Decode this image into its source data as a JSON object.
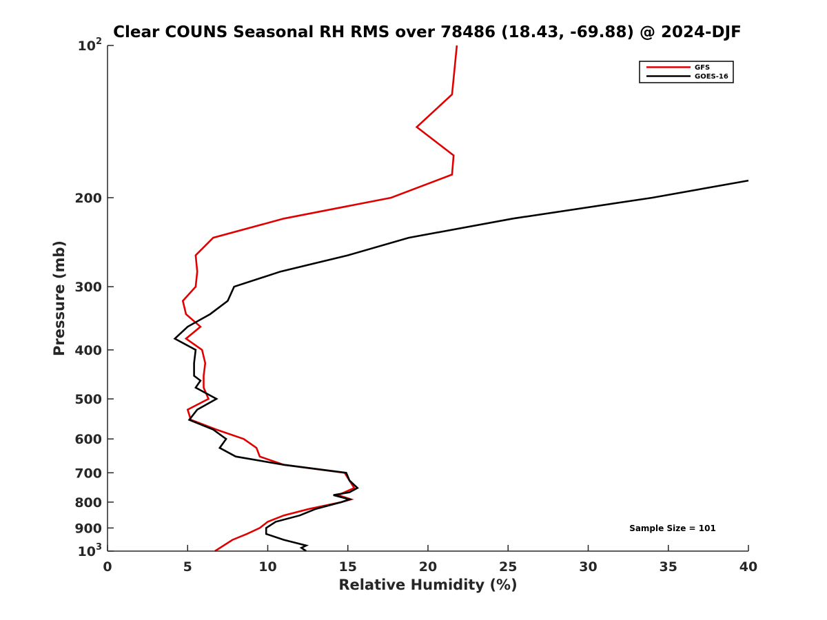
{
  "chart_data": {
    "type": "line",
    "title": "Clear COUNS Seasonal RH RMS over 78486 (18.43, -69.88) @ 2024-DJF",
    "xlabel": "Relative Humidity (%)",
    "ylabel": "Pressure (mb)",
    "xlim": [
      0,
      40
    ],
    "ylim": [
      100,
      1000
    ],
    "yscale": "log",
    "y_reversed": true,
    "x_ticks": [
      0,
      5,
      10,
      15,
      20,
      25,
      30,
      35,
      40
    ],
    "x_tick_labels": [
      "0",
      "5",
      "10",
      "15",
      "20",
      "25",
      "30",
      "35",
      "40"
    ],
    "y_ticks": [
      100,
      200,
      300,
      400,
      500,
      600,
      700,
      800,
      900,
      1000
    ],
    "y_tick_labels": [
      {
        "base": "10",
        "sup": "2"
      },
      {
        "base": "200",
        "sup": ""
      },
      {
        "base": "300",
        "sup": ""
      },
      {
        "base": "400",
        "sup": ""
      },
      {
        "base": "500",
        "sup": ""
      },
      {
        "base": "600",
        "sup": ""
      },
      {
        "base": "700",
        "sup": ""
      },
      {
        "base": "800",
        "sup": ""
      },
      {
        "base": "900",
        "sup": ""
      },
      {
        "base": "10",
        "sup": "3"
      }
    ],
    "legend_position": "top-right",
    "series": [
      {
        "name": "GFS",
        "color": "#e00000",
        "points": [
          [
            21.8,
            100
          ],
          [
            21.5,
            125
          ],
          [
            19.3,
            145
          ],
          [
            21.6,
            165
          ],
          [
            21.5,
            180
          ],
          [
            17.7,
            200
          ],
          [
            11.0,
            220
          ],
          [
            6.6,
            240
          ],
          [
            5.5,
            260
          ],
          [
            5.6,
            280
          ],
          [
            5.5,
            300
          ],
          [
            4.7,
            320
          ],
          [
            4.9,
            340
          ],
          [
            5.8,
            360
          ],
          [
            4.9,
            380
          ],
          [
            5.9,
            400
          ],
          [
            6.1,
            425
          ],
          [
            6.0,
            450
          ],
          [
            6.0,
            475
          ],
          [
            6.3,
            500
          ],
          [
            5.0,
            525
          ],
          [
            5.2,
            550
          ],
          [
            6.8,
            575
          ],
          [
            8.5,
            600
          ],
          [
            9.3,
            625
          ],
          [
            9.5,
            650
          ],
          [
            11.0,
            675
          ],
          [
            14.8,
            700
          ],
          [
            15.1,
            725
          ],
          [
            15.4,
            750
          ],
          [
            14.4,
            775
          ],
          [
            15.2,
            790
          ],
          [
            14.6,
            800
          ],
          [
            12.6,
            825
          ],
          [
            11.0,
            850
          ],
          [
            10.0,
            875
          ],
          [
            9.5,
            900
          ],
          [
            8.7,
            925
          ],
          [
            7.8,
            950
          ],
          [
            6.7,
            1000
          ]
        ]
      },
      {
        "name": "GOES-16",
        "color": "#000000",
        "points": [
          [
            40.0,
            185
          ],
          [
            34.0,
            200
          ],
          [
            25.3,
            220
          ],
          [
            18.8,
            240
          ],
          [
            15.0,
            260
          ],
          [
            10.8,
            280
          ],
          [
            7.9,
            300
          ],
          [
            7.5,
            320
          ],
          [
            6.4,
            340
          ],
          [
            5.0,
            360
          ],
          [
            4.2,
            380
          ],
          [
            5.5,
            400
          ],
          [
            5.4,
            425
          ],
          [
            5.4,
            450
          ],
          [
            5.8,
            460
          ],
          [
            5.5,
            475
          ],
          [
            6.8,
            500
          ],
          [
            5.6,
            525
          ],
          [
            5.1,
            550
          ],
          [
            6.6,
            575
          ],
          [
            7.4,
            600
          ],
          [
            7.0,
            625
          ],
          [
            8.0,
            650
          ],
          [
            11.0,
            675
          ],
          [
            14.9,
            700
          ],
          [
            15.1,
            725
          ],
          [
            15.6,
            750
          ],
          [
            15.1,
            765
          ],
          [
            14.1,
            775
          ],
          [
            15.1,
            790
          ],
          [
            14.6,
            800
          ],
          [
            13.0,
            825
          ],
          [
            12.0,
            850
          ],
          [
            10.5,
            875
          ],
          [
            9.9,
            900
          ],
          [
            9.9,
            925
          ],
          [
            11.0,
            950
          ],
          [
            12.4,
            975
          ],
          [
            12.1,
            985
          ],
          [
            12.4,
            1000
          ]
        ]
      }
    ],
    "annotations": [
      "Sample Size = 101"
    ]
  }
}
